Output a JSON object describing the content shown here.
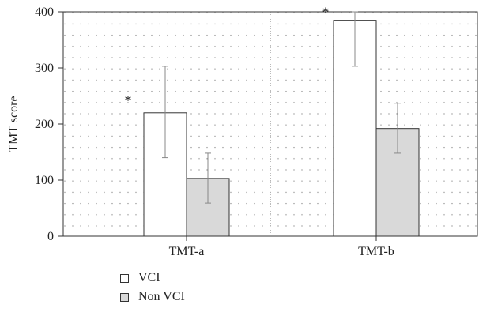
{
  "chart_data": {
    "type": "bar",
    "ylabel": "TMT score",
    "ylim": [
      0,
      400
    ],
    "yticks": [
      "0",
      "100",
      "200",
      "300",
      "400"
    ],
    "categories": [
      "TMT-a",
      "TMT-b"
    ],
    "grid": true,
    "legend_position": "bottom-left",
    "series": [
      {
        "name": "VCI",
        "values": [
          220,
          385
        ],
        "error": [
          [
            140,
            303
          ],
          [
            303,
            400
          ]
        ],
        "color": "#ffffff"
      },
      {
        "name": "Non VCI",
        "values": [
          103,
          192
        ],
        "error": [
          [
            59,
            148
          ],
          [
            148,
            237
          ]
        ],
        "color": "#d9d9d9"
      }
    ],
    "annotations": [
      {
        "text": "*",
        "category": "TMT-a",
        "series": "VCI",
        "y": 245
      },
      {
        "text": "*",
        "category": "TMT-b",
        "series": "VCI",
        "y": 402
      }
    ]
  }
}
